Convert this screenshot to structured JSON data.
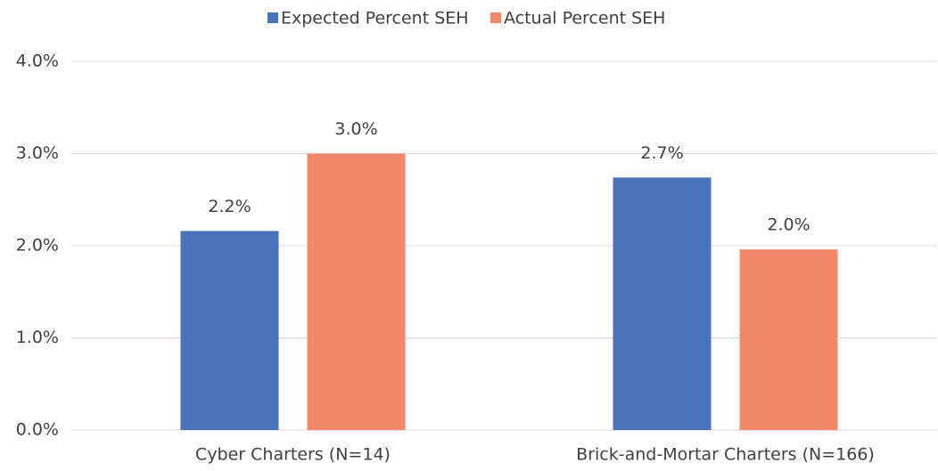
{
  "chart_data": {
    "type": "bar",
    "categories": [
      "Cyber Charters (N=14)",
      "Brick-and-Mortar Charters (N=166)"
    ],
    "series": [
      {
        "name": "Expected Percent SEH",
        "color": "#4a72b8",
        "values": [
          2.16,
          2.74
        ],
        "value_labels": [
          "2.2%",
          "2.7%"
        ]
      },
      {
        "name": "Actual Percent SEH",
        "color": "#f5886b",
        "values": [
          3.0,
          1.96
        ],
        "value_labels": [
          "3.0%",
          "2.0%"
        ]
      }
    ],
    "ylim": [
      0,
      4
    ],
    "yticks": [
      {
        "value": 0,
        "label": "0.0%"
      },
      {
        "value": 1,
        "label": "1.0%"
      },
      {
        "value": 2,
        "label": "2.0%"
      },
      {
        "value": 3,
        "label": "3.0%"
      },
      {
        "value": 4,
        "label": "4.0%"
      }
    ],
    "grid": true,
    "legend": "top"
  }
}
